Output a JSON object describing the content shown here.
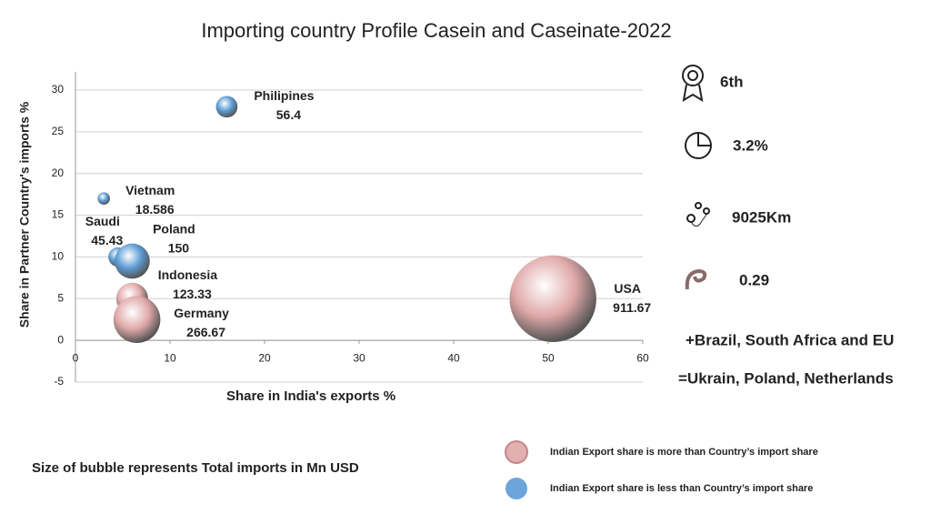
{
  "chart_data": {
    "type": "bubble",
    "title": "Importing country Profile Casein and Caseinate-2022",
    "x_label": "Share in India's exports %",
    "y_label": "Share in Partner Country's imports %",
    "xlim": [
      0,
      60
    ],
    "xticks": [
      0,
      10,
      20,
      30,
      40,
      50,
      60
    ],
    "ylim": [
      -5,
      30
    ],
    "yticks": [
      -5,
      0,
      5,
      10,
      15,
      20,
      25,
      30
    ],
    "grid": true,
    "series": [
      {
        "name": "Indian Export share is more than Country’s import share",
        "color": "#e0a8a8",
        "labels": [
          "Indonesia",
          "Germany",
          "USA"
        ],
        "x": [
          6,
          6.5,
          50.5
        ],
        "y": [
          5,
          2.5,
          5
        ],
        "sizes": [
          123.33,
          266.67,
          911.67
        ]
      },
      {
        "name": "Indian Export share is less than Country’s import share",
        "color": "#5b9bd5",
        "labels": [
          "Philipines",
          "Vietnam",
          "Saudi",
          "Poland"
        ],
        "x": [
          16,
          3,
          4.5,
          6
        ],
        "y": [
          28,
          17,
          10,
          9.5
        ],
        "sizes": [
          56.4,
          18.586,
          45.43,
          150
        ]
      }
    ]
  },
  "highlights": [
    "6th",
    "3.2%",
    "9025Km",
    "0.29"
  ],
  "markets": [
    "+Brazil, South Africa and EU",
    "=Ukrain, Poland, Netherlands"
  ],
  "note": "Size of bubble represents Total imports in Mn USD"
}
